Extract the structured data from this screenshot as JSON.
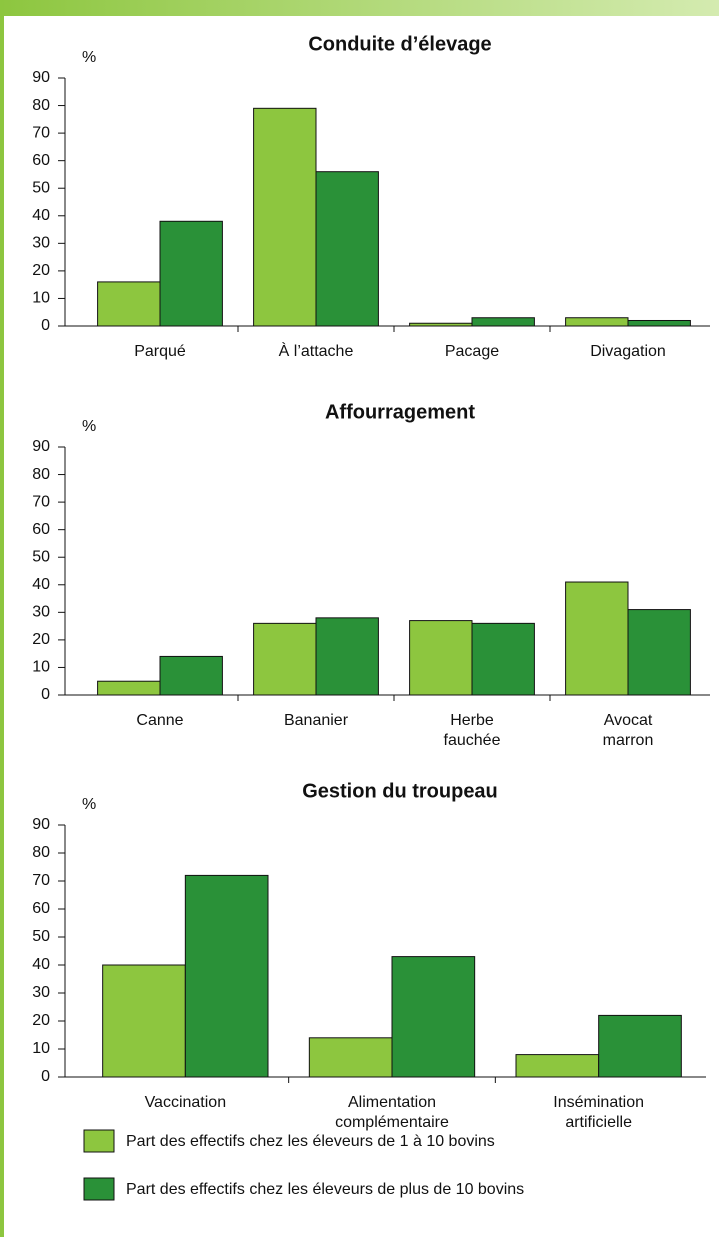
{
  "legend": [
    {
      "name": "Part des effectifs chez les éleveurs de 1 à 10 bovins",
      "color": "#8dc63f"
    },
    {
      "name": "Part des effectifs chez les éleveurs de plus de 10 bovins",
      "color": "#2a9138"
    }
  ],
  "chart_data": [
    {
      "type": "bar",
      "title": "Conduite d’élevage",
      "y_label": "%",
      "categories": [
        "Parqué",
        "À l’attache",
        "Pacage",
        "Divagation"
      ],
      "series": [
        {
          "values": [
            16,
            79,
            1,
            3
          ]
        },
        {
          "values": [
            38,
            56,
            3,
            2
          ]
        }
      ],
      "ylim": [
        0,
        90
      ],
      "yticks": [
        0,
        10,
        20,
        30,
        40,
        50,
        60,
        70,
        80,
        90
      ]
    },
    {
      "type": "bar",
      "title": "Affourragement",
      "y_label": "%",
      "categories": [
        "Canne",
        "Bananier",
        "Herbe\nfauchée",
        "Avocat\nmarron"
      ],
      "series": [
        {
          "values": [
            5,
            26,
            27,
            41
          ]
        },
        {
          "values": [
            14,
            28,
            26,
            31
          ]
        }
      ],
      "ylim": [
        0,
        90
      ],
      "yticks": [
        0,
        10,
        20,
        30,
        40,
        50,
        60,
        70,
        80,
        90
      ]
    },
    {
      "type": "bar",
      "title": "Gestion du troupeau",
      "y_label": "%",
      "categories": [
        "Vaccination",
        "Alimentation\ncomplémentaire",
        "Insémination\nartificielle"
      ],
      "series": [
        {
          "values": [
            40,
            14,
            8
          ]
        },
        {
          "values": [
            72,
            43,
            22
          ]
        }
      ],
      "ylim": [
        0,
        90
      ],
      "yticks": [
        0,
        10,
        20,
        30,
        40,
        50,
        60,
        70,
        80,
        90
      ]
    }
  ]
}
